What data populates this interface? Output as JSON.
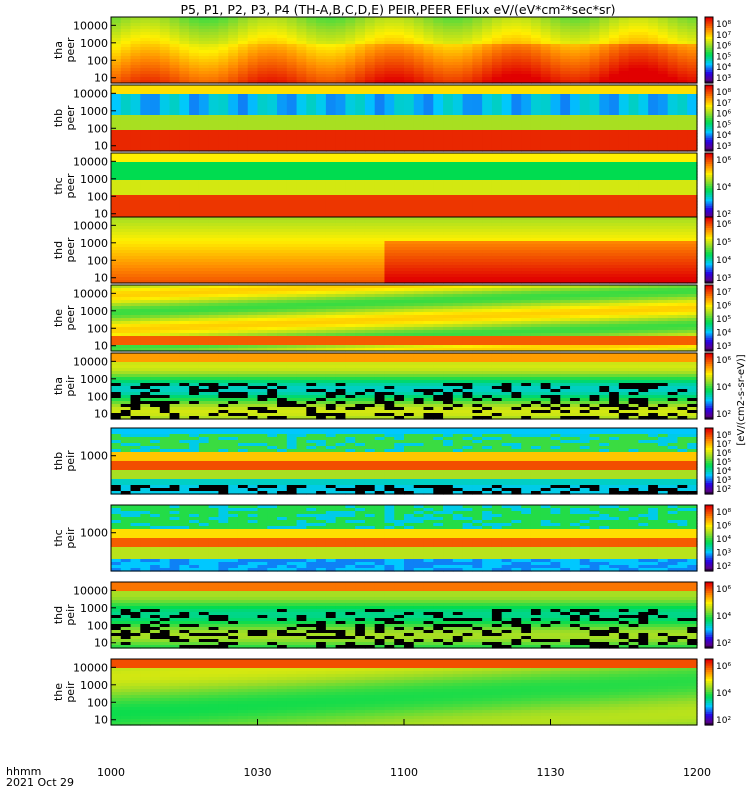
{
  "chart_data": {
    "type": "heatmap",
    "title": "P5, P1, P2, P3, P4 (TH-A,B,C,D,E) PEIR,PEER EFlux eV/(eV*cm²*sec*sr)",
    "x_axis": {
      "ticks": [
        "1000",
        "1030",
        "1100",
        "1130",
        "1200"
      ],
      "label_line1": "hhmm",
      "label_line2": "2021 Oct 29"
    },
    "colorbar_label": "[eV/(cm2-s-sr-eV)]",
    "panels": [
      {
        "name": "tha peer",
        "ylabel": [
          "tha",
          "peer"
        ],
        "yticks": [
          "10000",
          "1000",
          "100",
          "10"
        ],
        "cbar_ticks": [
          "10⁸",
          "10⁷",
          "10⁶",
          "10⁵",
          "10⁴",
          "10³"
        ],
        "ylim": [
          5,
          30000
        ],
        "profile": "peer_hot"
      },
      {
        "name": "thb peer",
        "ylabel": [
          "thb",
          "peer"
        ],
        "yticks": [
          "10000",
          "1000",
          "100",
          "10"
        ],
        "cbar_ticks": [
          "10⁸",
          "10⁷",
          "10⁶",
          "10⁵",
          "10⁴",
          "10³"
        ],
        "ylim": [
          5,
          30000
        ],
        "profile": "peer_solarwind"
      },
      {
        "name": "thc peer",
        "ylabel": [
          "thc",
          "peer"
        ],
        "yticks": [
          "10000",
          "1000",
          "100",
          "10"
        ],
        "cbar_ticks": [
          "10⁶",
          "10⁴",
          "10²"
        ],
        "ylim": [
          5,
          30000
        ],
        "profile": "peer_solarwind2"
      },
      {
        "name": "thd peer",
        "ylabel": [
          "thd",
          "peer"
        ],
        "yticks": [
          "10000",
          "1000",
          "100",
          "10"
        ],
        "cbar_ticks": [
          "10⁶",
          "10⁵",
          "10⁴",
          "10³"
        ],
        "ylim": [
          5,
          30000
        ],
        "profile": "peer_hot2"
      },
      {
        "name": "the peer",
        "ylabel": [
          "the",
          "peer"
        ],
        "yticks": [
          "10000",
          "1000",
          "100",
          "10"
        ],
        "cbar_ticks": [
          "10⁷",
          "10⁶",
          "10⁵",
          "10⁴",
          "10³"
        ],
        "ylim": [
          5,
          30000
        ],
        "profile": "peer_warm"
      },
      {
        "name": "tha peir",
        "ylabel": [
          "tha",
          "peir"
        ],
        "yticks": [
          "10000",
          "1000",
          "100",
          "10"
        ],
        "cbar_ticks": [
          "10⁶",
          "10⁴",
          "10²"
        ],
        "ylim": [
          5,
          30000
        ],
        "profile": "peir_sparse"
      },
      {
        "name": "thb peir",
        "ylabel": [
          "thb",
          "peir"
        ],
        "yticks": [
          "1000"
        ],
        "cbar_ticks": [
          "10⁸",
          "10⁷",
          "10⁶",
          "10⁵",
          "10⁴",
          "10³",
          "10²"
        ],
        "ylim": [
          5,
          30000
        ],
        "profile": "peir_bands"
      },
      {
        "name": "thc peir",
        "ylabel": [
          "thc",
          "peir"
        ],
        "yticks": [
          "1000"
        ],
        "cbar_ticks": [
          "10⁸",
          "10⁶",
          "10⁴",
          "10³",
          "10²"
        ],
        "ylim": [
          5,
          30000
        ],
        "profile": "peir_bands2"
      },
      {
        "name": "thd peir",
        "ylabel": [
          "thd",
          "peir"
        ],
        "yticks": [
          "10000",
          "1000",
          "100",
          "10"
        ],
        "cbar_ticks": [
          "10⁶",
          "10⁴",
          "10²"
        ],
        "ylim": [
          5,
          30000
        ],
        "profile": "peir_sparse2"
      },
      {
        "name": "the peir",
        "ylabel": [
          "the",
          "peir"
        ],
        "yticks": [
          "10000",
          "1000",
          "100",
          "10"
        ],
        "cbar_ticks": [
          "10⁶",
          "10⁴",
          "10²"
        ],
        "ylim": [
          5,
          30000
        ],
        "profile": "peir_warm"
      }
    ]
  }
}
